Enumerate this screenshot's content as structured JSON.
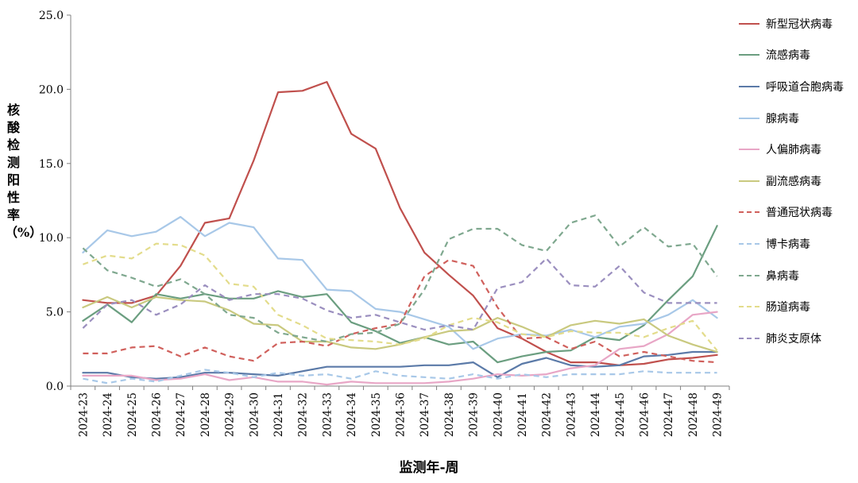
{
  "chart_data": {
    "type": "line",
    "ylabel": "核酸检测阳性率（%）",
    "xlabel": "监测年-周",
    "ylim": [
      0,
      25
    ],
    "yticks": [
      "0.0",
      "5.0",
      "10.0",
      "15.0",
      "20.0",
      "25.0"
    ],
    "legend_position": "right",
    "categories": [
      "2024-23",
      "2024-24",
      "2024-25",
      "2024-26",
      "2024-27",
      "2024-28",
      "2024-29",
      "2024-30",
      "2024-31",
      "2024-32",
      "2024-33",
      "2024-34",
      "2024-35",
      "2024-36",
      "2024-37",
      "2024-38",
      "2024-39",
      "2024-40",
      "2024-41",
      "2024-42",
      "2024-43",
      "2024-44",
      "2024-45",
      "2024-46",
      "2024-47",
      "2024-48",
      "2024-49"
    ],
    "series": [
      {
        "name": "新型冠状病毒",
        "color": "#c0504d",
        "dash": "solid",
        "values": [
          5.8,
          5.6,
          5.6,
          6.1,
          8.1,
          11.0,
          11.3,
          15.2,
          19.8,
          19.9,
          20.5,
          17.0,
          16.0,
          12.0,
          9.0,
          7.5,
          6.1,
          3.9,
          3.2,
          2.3,
          1.6,
          1.6,
          1.4,
          1.5,
          1.8,
          1.9,
          2.1
        ]
      },
      {
        "name": "流感病毒",
        "color": "#6b9e80",
        "dash": "solid",
        "values": [
          4.4,
          5.5,
          4.3,
          6.2,
          5.9,
          6.2,
          5.9,
          5.9,
          6.4,
          6.0,
          6.2,
          4.3,
          3.7,
          2.9,
          3.3,
          2.8,
          3.0,
          1.6,
          2.0,
          2.3,
          2.4,
          3.3,
          3.1,
          4.1,
          5.8,
          7.4,
          10.8
        ]
      },
      {
        "name": "呼吸道合胞病毒",
        "color": "#5b7aa8",
        "dash": "solid",
        "values": [
          0.9,
          0.9,
          0.6,
          0.5,
          0.6,
          0.9,
          0.9,
          0.8,
          0.7,
          1.0,
          1.3,
          1.3,
          1.3,
          1.3,
          1.4,
          1.4,
          1.6,
          0.6,
          1.5,
          1.9,
          1.4,
          1.3,
          1.4,
          2.0,
          2.1,
          2.3,
          2.3
        ]
      },
      {
        "name": "腺病毒",
        "color": "#a8c8e8",
        "dash": "solid",
        "values": [
          9.0,
          10.5,
          10.1,
          10.4,
          11.4,
          10.1,
          11.0,
          10.7,
          8.6,
          8.5,
          6.5,
          6.4,
          5.2,
          5.0,
          4.5,
          4.0,
          2.5,
          3.2,
          3.5,
          3.4,
          3.8,
          3.3,
          4.0,
          4.2,
          4.8,
          5.8,
          4.6
        ]
      },
      {
        "name": "人偏肺病毒",
        "color": "#e8a6c6",
        "dash": "solid",
        "values": [
          0.7,
          0.7,
          0.7,
          0.4,
          0.5,
          0.8,
          0.4,
          0.6,
          0.3,
          0.3,
          0.1,
          0.3,
          0.2,
          0.2,
          0.2,
          0.3,
          0.5,
          0.8,
          0.7,
          0.8,
          1.2,
          1.4,
          2.5,
          2.7,
          3.5,
          4.8,
          5.0
        ]
      },
      {
        "name": "副流感病毒",
        "color": "#c9c97f",
        "dash": "solid",
        "values": [
          5.3,
          6.0,
          5.3,
          6.0,
          5.8,
          5.7,
          5.1,
          4.2,
          4.1,
          3.0,
          3.0,
          2.6,
          2.5,
          2.8,
          3.3,
          3.7,
          3.8,
          4.6,
          4.0,
          3.3,
          4.1,
          4.4,
          4.2,
          4.5,
          3.4,
          2.8,
          2.3
        ]
      },
      {
        "name": "普通冠状病毒",
        "color": "#d0605c",
        "dash": "dashed",
        "values": [
          2.2,
          2.2,
          2.6,
          2.7,
          2.0,
          2.6,
          2.0,
          1.7,
          2.9,
          3.0,
          2.7,
          3.5,
          3.9,
          4.2,
          7.4,
          8.5,
          8.1,
          5.3,
          3.2,
          3.3,
          2.5,
          3.0,
          2.0,
          2.3,
          2.0,
          1.7,
          1.6
        ]
      },
      {
        "name": "博卡病毒",
        "color": "#a8c8e8",
        "dash": "dashed",
        "values": [
          0.5,
          0.2,
          0.5,
          0.3,
          0.7,
          1.1,
          0.9,
          0.6,
          0.9,
          0.7,
          0.8,
          0.5,
          1.0,
          0.7,
          0.6,
          0.5,
          0.8,
          0.5,
          0.8,
          0.6,
          0.8,
          0.8,
          0.8,
          1.0,
          0.9,
          0.9,
          0.9
        ]
      },
      {
        "name": "鼻病毒",
        "color": "#7fa88f",
        "dash": "dashed",
        "values": [
          9.3,
          7.8,
          7.3,
          6.7,
          7.2,
          6.2,
          4.8,
          4.6,
          3.6,
          3.3,
          3.0,
          3.5,
          3.6,
          4.2,
          6.5,
          9.9,
          10.6,
          10.6,
          9.5,
          9.1,
          11.0,
          11.5,
          9.4,
          10.7,
          9.4,
          9.6,
          7.4
        ]
      },
      {
        "name": "肠道病毒",
        "color": "#e3dc8b",
        "dash": "dashed",
        "values": [
          8.2,
          8.8,
          8.6,
          9.6,
          9.5,
          8.8,
          6.9,
          6.7,
          4.8,
          4.1,
          3.2,
          3.1,
          3.0,
          2.8,
          3.2,
          4.1,
          4.6,
          4.3,
          3.5,
          3.3,
          3.7,
          3.6,
          3.6,
          3.3,
          3.9,
          4.4,
          2.4
        ]
      },
      {
        "name": "肺炎支原体",
        "color": "#9b8fbf",
        "dash": "dashed",
        "values": [
          3.9,
          5.5,
          5.8,
          4.8,
          5.5,
          6.8,
          5.8,
          6.2,
          6.2,
          5.9,
          5.1,
          4.6,
          4.8,
          4.3,
          3.8,
          4.1,
          3.8,
          6.6,
          7.0,
          8.6,
          6.8,
          6.7,
          8.1,
          6.3,
          5.6,
          5.6,
          5.6
        ]
      }
    ]
  }
}
